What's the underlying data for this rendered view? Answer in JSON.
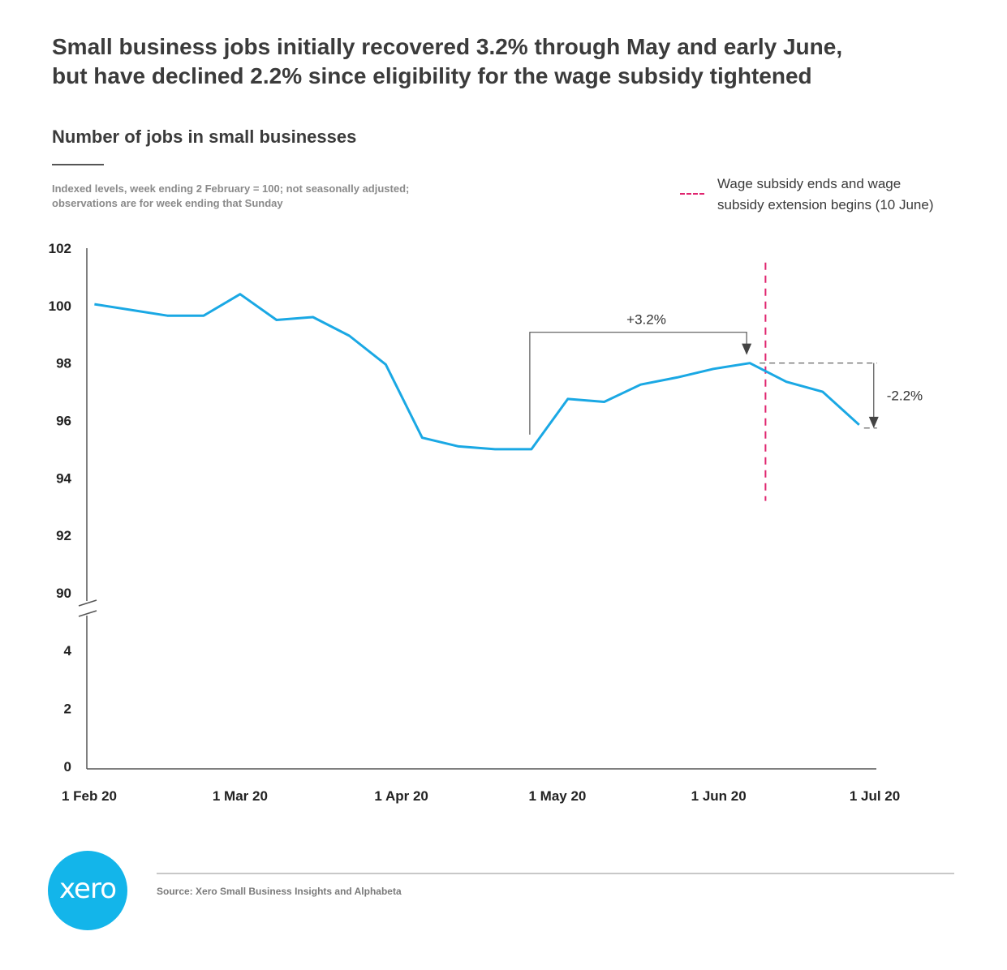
{
  "header": {
    "title_line1": "Small business jobs initially recovered 3.2% through May and early June,",
    "title_line2": "but have declined 2.2% since eligibility for the wage subsidy tightened",
    "subtitle": "Number of jobs in small businesses",
    "note_line1": "Indexed levels, week ending 2 February = 100; not seasonally adjusted;",
    "note_line2": "observations are for week ending that Sunday"
  },
  "legend": {
    "line1": "Wage subsidy ends and wage",
    "line2": "subsidy extension begins (10 June)",
    "color": "#e0256f"
  },
  "chart_data": {
    "type": "line",
    "series": [
      {
        "color": "#1aa8e4",
        "points": [
          [
            "2020-02-02",
            100.05
          ],
          [
            "2020-02-09",
            99.85
          ],
          [
            "2020-02-16",
            99.65
          ],
          [
            "2020-02-23",
            99.65
          ],
          [
            "2020-03-01",
            100.4
          ],
          [
            "2020-03-08",
            99.5
          ],
          [
            "2020-03-15",
            99.6
          ],
          [
            "2020-03-22",
            98.95
          ],
          [
            "2020-03-29",
            97.95
          ],
          [
            "2020-04-05",
            95.4
          ],
          [
            "2020-04-12",
            95.1
          ],
          [
            "2020-04-19",
            95.0
          ],
          [
            "2020-04-26",
            95.0
          ],
          [
            "2020-05-03",
            96.75
          ],
          [
            "2020-05-10",
            96.65
          ],
          [
            "2020-05-17",
            97.25
          ],
          [
            "2020-05-24",
            97.5
          ],
          [
            "2020-05-31",
            97.8
          ],
          [
            "2020-06-07",
            98.0
          ],
          [
            "2020-06-14",
            97.35
          ],
          [
            "2020-06-21",
            97.0
          ],
          [
            "2020-06-28",
            95.85
          ]
        ]
      }
    ],
    "x_ticks": [
      [
        "2020-02-01",
        "1 Feb 20"
      ],
      [
        "2020-03-01",
        "1 Mar 20"
      ],
      [
        "2020-04-01",
        "1 Apr 20"
      ],
      [
        "2020-05-01",
        "1 May 20"
      ],
      [
        "2020-06-01",
        "1 Jun 20"
      ],
      [
        "2020-07-01",
        "1 Jul 20"
      ]
    ],
    "y_upper_ticks": [
      "90",
      "92",
      "94",
      "96",
      "98",
      "102",
      "100"
    ],
    "y_upper_values": [
      90,
      92,
      94,
      96,
      98,
      102,
      100
    ],
    "y_lower_ticks": [
      "0",
      "2",
      "4"
    ],
    "y_lower_values": [
      0,
      2,
      4
    ],
    "y_upper_range": [
      90,
      102
    ],
    "y_lower_range": [
      0,
      4
    ],
    "axis_break": true,
    "x_range": [
      "2020-02-01",
      "2020-07-01"
    ],
    "vline": {
      "x": "2020-06-10",
      "y_range": [
        93.2,
        101.5
      ]
    },
    "annotations": [
      {
        "label": "+3.2%",
        "from": [
          "2020-04-26",
          95.0
        ],
        "to": [
          "2020-06-07",
          98.0
        ]
      },
      {
        "label": "-2.2%",
        "from": [
          "2020-06-07",
          98.0
        ],
        "to": [
          "2020-06-28",
          95.85
        ]
      }
    ],
    "grid": false
  },
  "footer": {
    "source": "Source: Xero Small Business Insights and Alphabeta",
    "logo_text": "xero"
  }
}
